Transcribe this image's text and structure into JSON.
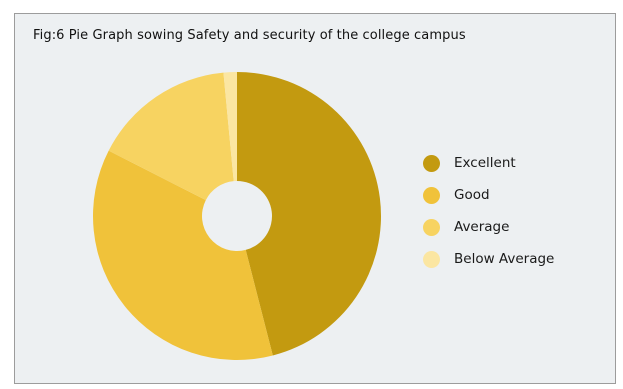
{
  "chart_data": {
    "type": "pie",
    "style": "donut",
    "title": "Fig:6 Pie Graph sowing Safety and security of the college campus",
    "legend_position": "right",
    "slices": [
      {
        "label": "Excellent",
        "value": 46.0,
        "color": "#c39a10"
      },
      {
        "label": "Good",
        "value": 36.5,
        "color": "#f0c23a"
      },
      {
        "label": "Average",
        "value": 16.0,
        "color": "#f7d361"
      },
      {
        "label": "Below Average",
        "value": 1.5,
        "color": "#fbe6a2"
      }
    ]
  }
}
